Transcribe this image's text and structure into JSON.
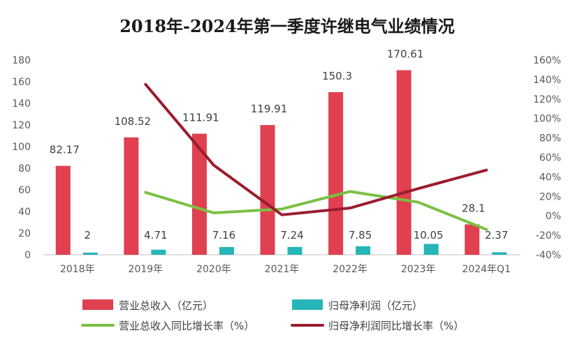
{
  "chart_data": {
    "type": "bar",
    "title": "2018年-2024年第一季度许继电气业绩情况",
    "categories": [
      "2018年",
      "2019年",
      "2020年",
      "2021年",
      "2022年",
      "2023年",
      "2024年Q1"
    ],
    "y_left": {
      "min": 0,
      "max": 180,
      "step": 20,
      "ticks": [
        "0",
        "20",
        "40",
        "60",
        "80",
        "100",
        "120",
        "140",
        "160",
        "180"
      ]
    },
    "y_right": {
      "min": -40,
      "max": 160,
      "step": 20,
      "ticks": [
        "-40%",
        "-20%",
        "0%",
        "20%",
        "40%",
        "60%",
        "80%",
        "100%",
        "120%",
        "140%",
        "160%"
      ]
    },
    "series": [
      {
        "name": "营业总收入（亿元）",
        "kind": "bar",
        "axis": "left",
        "color": "#e0404f",
        "values": [
          82.17,
          108.52,
          111.91,
          119.91,
          150.3,
          170.61,
          28.1
        ],
        "labels": [
          "82.17",
          "108.52",
          "111.91",
          "119.91",
          "150.3",
          "170.61",
          "28.1"
        ]
      },
      {
        "name": "归母净利润（亿元）",
        "kind": "bar",
        "axis": "left",
        "color": "#26b5b8",
        "values": [
          2,
          4.71,
          7.16,
          7.24,
          7.85,
          10.05,
          2.37
        ],
        "labels": [
          "2",
          "4.71",
          "7.16",
          "7.24",
          "7.85",
          "10.05",
          "2.37"
        ]
      },
      {
        "name": "营业总收入同比增长率（%）",
        "kind": "line",
        "axis": "right",
        "color": "#7ac143",
        "values": [
          null,
          24,
          3,
          7,
          25,
          14,
          -14
        ]
      },
      {
        "name": "归母净利润同比增长率（%）",
        "kind": "line",
        "axis": "right",
        "color": "#9b1c2e",
        "values": [
          null,
          135,
          52,
          1,
          8,
          28,
          47
        ]
      }
    ],
    "legend_position": "bottom",
    "grid": false
  }
}
